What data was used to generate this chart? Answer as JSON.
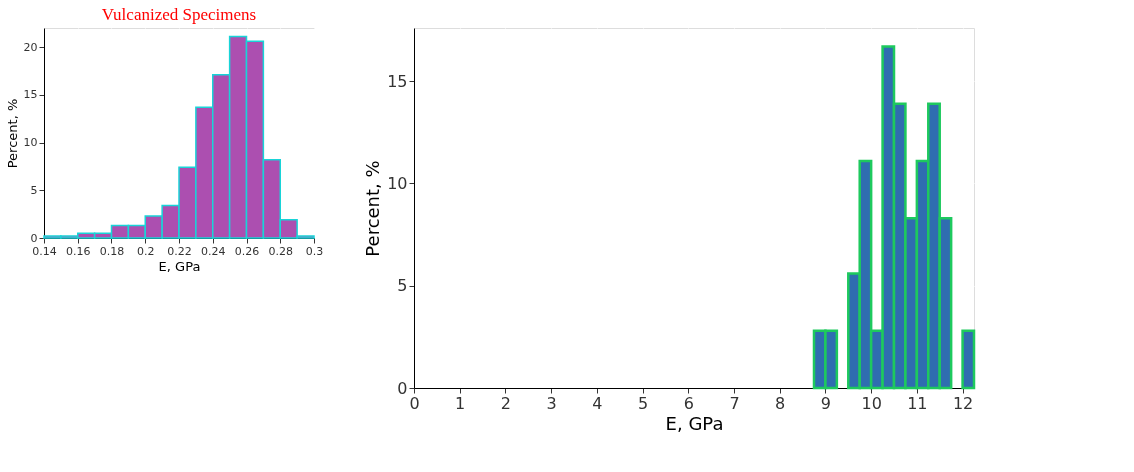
{
  "chart_data": [
    {
      "type": "histogram",
      "title": "Vulcanized Specimens",
      "xlabel": "E, GPa",
      "ylabel": "Percent, %",
      "color": "#ac4fb0",
      "bins": [
        0.14,
        0.15,
        0.16,
        0.17,
        0.18,
        0.19,
        0.2,
        0.21,
        0.22,
        0.23,
        0.24,
        0.25,
        0.26,
        0.27,
        0.28,
        0.29,
        0.3
      ],
      "values": [
        0.2,
        0.2,
        0.5,
        0.5,
        1.3,
        1.3,
        2.3,
        3.4,
        7.4,
        13.7,
        17.1,
        21.1,
        20.6,
        8.2,
        1.9,
        0.2
      ],
      "xlim": [
        0.14,
        0.3
      ],
      "xticks": [
        0.14,
        0.16,
        0.18,
        0.2,
        0.22,
        0.24,
        0.26,
        0.28,
        0.3
      ],
      "ylim": [
        0,
        22
      ],
      "yticks": [
        0,
        5,
        10,
        15,
        20
      ],
      "grid": true
    },
    {
      "type": "histogram",
      "xlabel": "E, GPa",
      "ylabel": "Percent, %",
      "color": "#2f6db0",
      "bins": [
        8.75,
        9.0,
        9.25,
        9.5,
        9.75,
        10.0,
        10.25,
        10.5,
        10.75,
        11.0,
        11.25,
        11.5,
        11.75,
        12.0,
        12.25
      ],
      "values": [
        2.8,
        2.8,
        null,
        5.6,
        11.1,
        2.8,
        16.7,
        13.9,
        8.3,
        11.1,
        13.9,
        8.3,
        null,
        2.8
      ],
      "xlim": [
        0,
        12.25
      ],
      "xticks": [
        0,
        1,
        2,
        3,
        4,
        5,
        6,
        7,
        8,
        9,
        10,
        11,
        12
      ],
      "ylim": [
        0,
        17.6
      ],
      "yticks": [
        0,
        5,
        10,
        15
      ],
      "grid": true
    }
  ]
}
